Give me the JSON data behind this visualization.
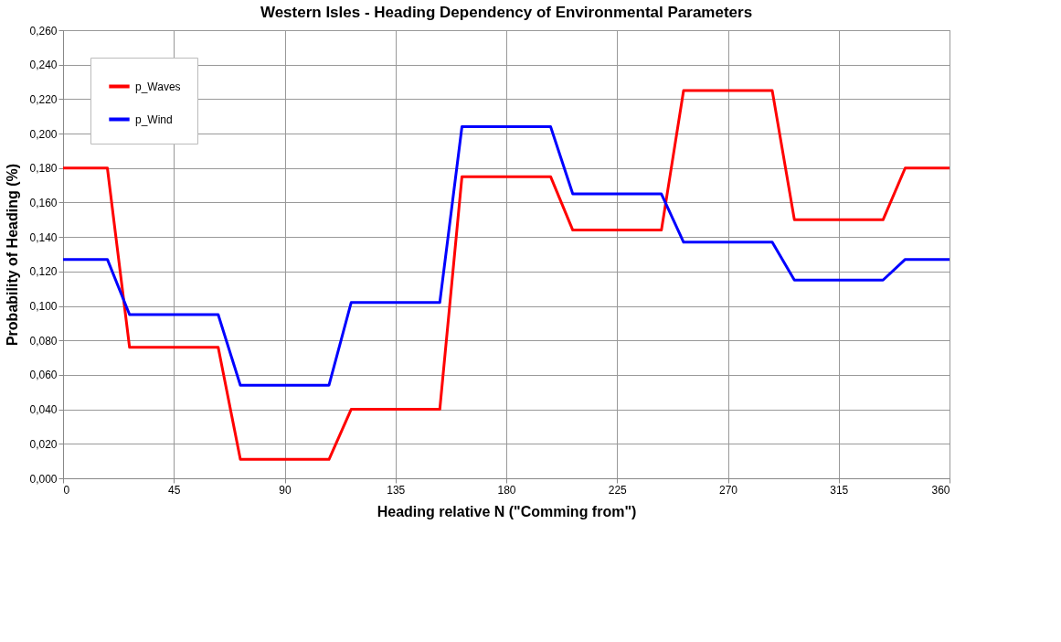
{
  "chart_data": {
    "type": "line",
    "title": "Western Isles  - Heading Dependency of Environmental Parameters",
    "xlabel": "Heading relative N (\"Comming from\")",
    "ylabel": "Probability of Heading (%)",
    "x": [
      0,
      18,
      27,
      63,
      72,
      108,
      117,
      153,
      162,
      198,
      207,
      243,
      252,
      288,
      297,
      333,
      342,
      360
    ],
    "series": [
      {
        "name": "p_Waves",
        "color": "#ff0000",
        "values": [
          0.18,
          0.18,
          0.076,
          0.076,
          0.011,
          0.011,
          0.04,
          0.04,
          0.175,
          0.175,
          0.144,
          0.144,
          0.225,
          0.225,
          0.15,
          0.15,
          0.18,
          0.18
        ]
      },
      {
        "name": "p_Wind",
        "color": "#0000ff",
        "values": [
          0.127,
          0.127,
          0.095,
          0.095,
          0.054,
          0.054,
          0.102,
          0.102,
          0.204,
          0.204,
          0.165,
          0.165,
          0.137,
          0.137,
          0.115,
          0.115,
          0.127,
          0.127
        ]
      }
    ],
    "xlim": [
      0,
      360
    ],
    "xticks": [
      0,
      45,
      90,
      135,
      180,
      225,
      270,
      315,
      360
    ],
    "ylim": [
      0,
      0.26
    ],
    "yticks": [
      {
        "value": 0,
        "label": "0,000"
      },
      {
        "value": 0.02,
        "label": "0,020"
      },
      {
        "value": 0.04,
        "label": "0,040"
      },
      {
        "value": 0.06,
        "label": "0,060"
      },
      {
        "value": 0.08,
        "label": "0,080"
      },
      {
        "value": 0.1,
        "label": "0,100"
      },
      {
        "value": 0.12,
        "label": "0,120"
      },
      {
        "value": 0.14,
        "label": "0,140"
      },
      {
        "value": 0.16,
        "label": "0,160"
      },
      {
        "value": 0.18,
        "label": "0,180"
      },
      {
        "value": 0.2,
        "label": "0,200"
      },
      {
        "value": 0.22,
        "label": "0,220"
      },
      {
        "value": 0.24,
        "label": "0,240"
      },
      {
        "value": 0.26,
        "label": "0,260"
      }
    ],
    "grid": true,
    "legend": "top left",
    "marker": "none",
    "line_style": "solid"
  }
}
